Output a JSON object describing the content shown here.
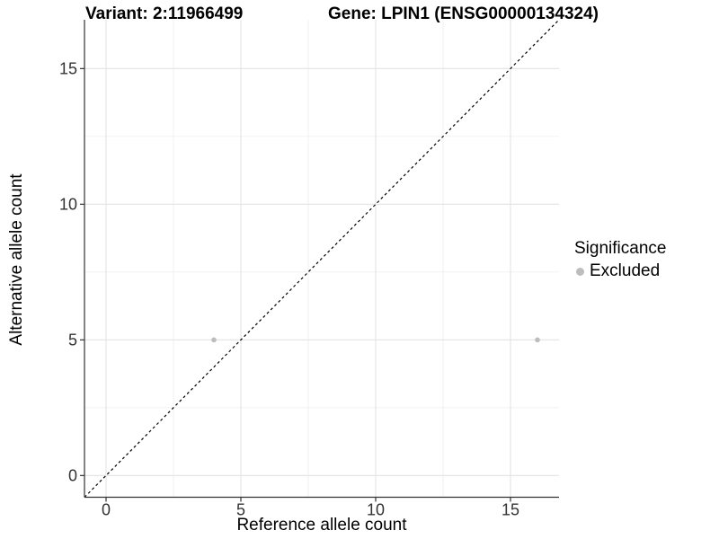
{
  "titles": {
    "left": "Variant: 2:11966499",
    "right": "Gene: LPIN1 (ENSG00000134324)"
  },
  "legend": {
    "title": "Significance",
    "items": [
      {
        "label": "Excluded",
        "color": "#bdbdbd"
      }
    ]
  },
  "chart_data": {
    "type": "scatter",
    "title": "Variant: 2:11966499 — Gene: LPIN1 (ENSG00000134324)",
    "xlabel": "Reference allele count",
    "ylabel": "Alternative allele count",
    "xlim": [
      -0.8,
      16.8
    ],
    "ylim": [
      -0.8,
      16.8
    ],
    "x_ticks": [
      0,
      5,
      10,
      15
    ],
    "y_ticks": [
      0,
      5,
      10,
      15
    ],
    "x_minor_ticks": [
      2.5,
      7.5,
      12.5
    ],
    "y_minor_ticks": [
      2.5,
      7.5,
      12.5
    ],
    "grid": "major+minor",
    "legend_position": "right",
    "reference_line": {
      "type": "identity",
      "style": "dashed",
      "color": "#000000"
    },
    "series": [
      {
        "name": "Excluded",
        "color": "#bdbdbd",
        "marker": "circle",
        "points": [
          [
            4,
            5
          ],
          [
            16,
            5
          ]
        ]
      }
    ],
    "colors": {
      "grid_major": "#e3e3e3",
      "grid_minor": "#f0f0f0",
      "axis_line": "#333333",
      "tick_label": "#333333"
    }
  }
}
